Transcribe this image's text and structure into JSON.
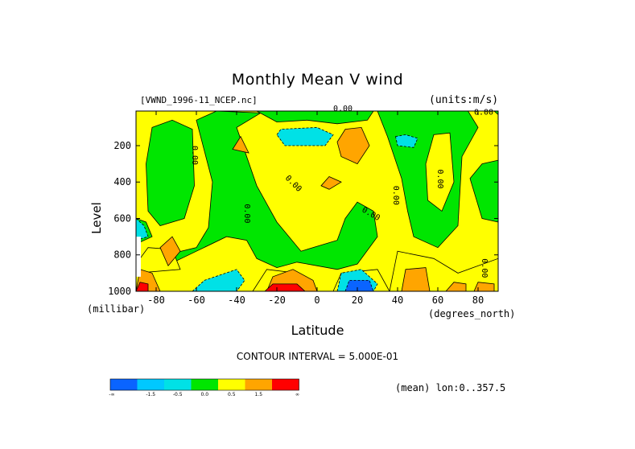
{
  "chart_data": {
    "type": "heatmap",
    "title": "Monthly Mean V wind",
    "dataset": "[VWND_1996-11_NCEP.nc]",
    "units": "(units:m/s)",
    "xlabel": "Latitude",
    "xunit": "(degrees_north)",
    "ylabel": "Level",
    "yunit": "(millibar)",
    "xlim": [
      -90,
      90
    ],
    "ylim": [
      1000,
      10
    ],
    "x_ticks": [
      -80,
      -60,
      -40,
      -20,
      0,
      20,
      40,
      60,
      80
    ],
    "x_tick_labels": [
      "-80",
      "-60",
      "-40",
      "-20",
      "0",
      "20",
      "40",
      "60",
      "80"
    ],
    "y_ticks": [
      200,
      400,
      600,
      800,
      1000
    ],
    "y_tick_labels": [
      "200",
      "400",
      "600",
      "800",
      "1000"
    ],
    "contour_label": "0.00",
    "contour_interval_text": "CONTOUR INTERVAL = 5.000E-01",
    "mean_info": "(mean) lon:0..357.5",
    "legend": {
      "colors": [
        "#0a64ff",
        "#00c8ff",
        "#00e1e6",
        "#00e600",
        "#ffff00",
        "#ffa500",
        "#ff0000"
      ],
      "labels": [
        "-∞",
        "-1.5",
        "-0.5",
        "0.0",
        "0.5",
        "1.5",
        "∞"
      ]
    },
    "regions": [
      {
        "level_class": "positive",
        "color": "#ffff00",
        "description_value": 0.25
      },
      {
        "level_class": "negative",
        "color": "#00e600",
        "description_value": -0.25
      },
      {
        "level_class": "strong_positive",
        "color": "#ffa500",
        "description_value": 1.0
      },
      {
        "level_class": "strong_negative",
        "color": "#00e1e6",
        "description_value": -1.0
      }
    ]
  }
}
